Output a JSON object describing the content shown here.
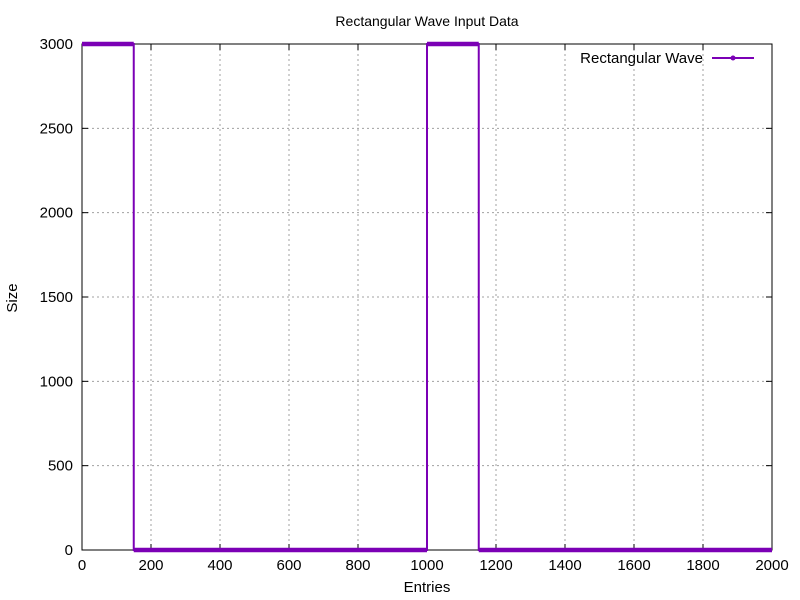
{
  "chart_data": {
    "type": "line",
    "title": "Rectangular Wave Input Data",
    "xlabel": "Entries",
    "ylabel": "Size",
    "xlim": [
      0,
      2000
    ],
    "ylim": [
      0,
      3000
    ],
    "x_ticks": [
      0,
      200,
      400,
      600,
      800,
      1000,
      1200,
      1400,
      1600,
      1800,
      2000
    ],
    "y_ticks": [
      0,
      500,
      1000,
      1500,
      2000,
      2500,
      3000
    ],
    "x_tick_labels": [
      "0",
      "200",
      "400",
      "600",
      "800",
      "1000",
      "1200",
      "1400",
      "1600",
      "1800",
      "2000"
    ],
    "y_tick_labels": [
      "0",
      "500",
      "1000",
      "1500",
      "2000",
      "2500",
      "3000"
    ],
    "grid": true,
    "legend_position": "top-right",
    "series": [
      {
        "name": "Rectangular Wave",
        "color": "#7b00b5",
        "segments": [
          {
            "x_start": 0,
            "x_end": 150,
            "y": 3000
          },
          {
            "x_start": 150,
            "x_end": 1000,
            "y": 0
          },
          {
            "x_start": 1000,
            "x_end": 1150,
            "y": 3000
          },
          {
            "x_start": 1150,
            "x_end": 2000,
            "y": 0
          }
        ]
      }
    ]
  }
}
